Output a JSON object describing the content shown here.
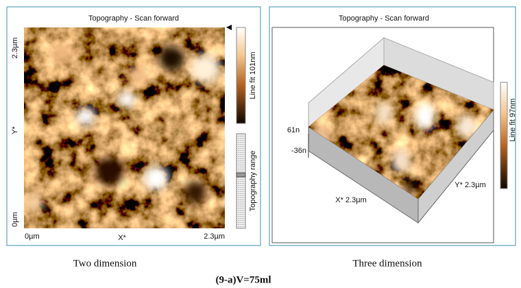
{
  "left_panel": {
    "title": "Topography - Scan forward",
    "y_top": "2.3µm",
    "y_label": "Y*",
    "y_bottom": "0µm",
    "x_left": "0µm",
    "x_label": "X*",
    "x_right": "2.3µm",
    "colorbar_label": "Line fit 101nm",
    "range_label": "Topography range"
  },
  "right_panel": {
    "title": "Topography - Scan forward",
    "z_top": "61n",
    "z_bottom": "-36n",
    "x_label": "X* 2.3µm",
    "y_label": "Y* 2.3µm",
    "colorbar_label": "Line fit 97nm"
  },
  "captions": {
    "left": "Two dimension",
    "right": "Three dimension",
    "figure": "(9-a)V=75ml"
  }
}
